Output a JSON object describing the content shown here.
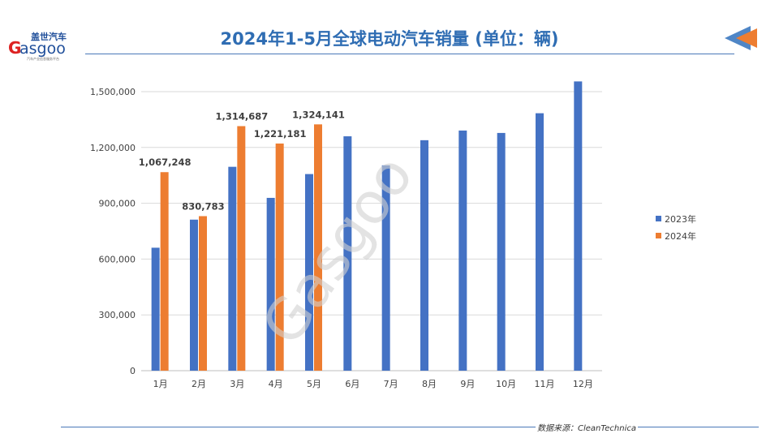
{
  "header": {
    "title": "2024年1-5月全球电动汽车销量 (单位：辆)",
    "logo_text": "盖世汽车 Gasgoo",
    "logo_sub": "汽车产业信息服务平台",
    "nav_icon": "arrow-left-icon"
  },
  "footer": {
    "source": "数据来源：CleanTechnica"
  },
  "colors": {
    "series_2023": "#4472c4",
    "series_2024": "#ed7d31",
    "title": "#2f6db3"
  },
  "chart_data": {
    "type": "bar",
    "title": "",
    "categories": [
      "1月",
      "2月",
      "3月",
      "4月",
      "5月",
      "6月",
      "7月",
      "8月",
      "9月",
      "10月",
      "11月",
      "12月"
    ],
    "series": [
      {
        "name": "2023年",
        "values": [
          661000,
          812000,
          1096000,
          929000,
          1057000,
          1260000,
          1104000,
          1239000,
          1291000,
          1278000,
          1384000,
          1555000
        ]
      },
      {
        "name": "2024年",
        "values": [
          1067248,
          830783,
          1314687,
          1221181,
          1324141,
          null,
          null,
          null,
          null,
          null,
          null,
          null
        ],
        "data_labels": [
          "1,067,248",
          "830,783",
          "1,314,687",
          "1,221,181",
          "1,324,141"
        ]
      }
    ],
    "yticks": [
      "0",
      "300,000",
      "600,000",
      "900,000",
      "1,200,000",
      "1,500,000"
    ],
    "ytick_values": [
      0,
      300000,
      600000,
      900000,
      1200000,
      1500000
    ],
    "ylim": [
      0,
      1500000
    ],
    "grid": true,
    "legend": "right"
  }
}
